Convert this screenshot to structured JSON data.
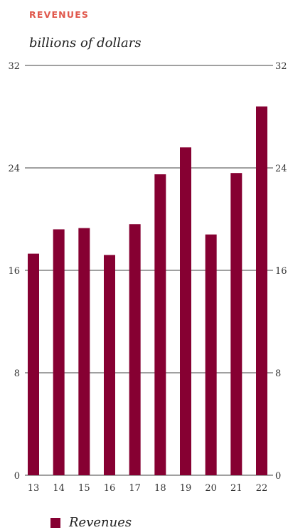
{
  "chart_data": {
    "type": "bar",
    "title": "REVENUES",
    "subtitle": "billions of dollars",
    "categories": [
      "13",
      "14",
      "15",
      "16",
      "17",
      "18",
      "19",
      "20",
      "21",
      "22"
    ],
    "series": [
      {
        "name": "Revenues",
        "values": [
          17.3,
          19.2,
          19.3,
          17.2,
          19.6,
          23.5,
          25.6,
          18.8,
          23.6,
          28.8
        ]
      }
    ],
    "ylim": [
      0,
      32
    ],
    "yticks": [
      "0",
      "8",
      "16",
      "24",
      "32"
    ],
    "grid": true,
    "legend_placement": "bottom-left",
    "colors": {
      "bar": "#860032",
      "title": "#e0574b",
      "grid": "#000000"
    }
  }
}
